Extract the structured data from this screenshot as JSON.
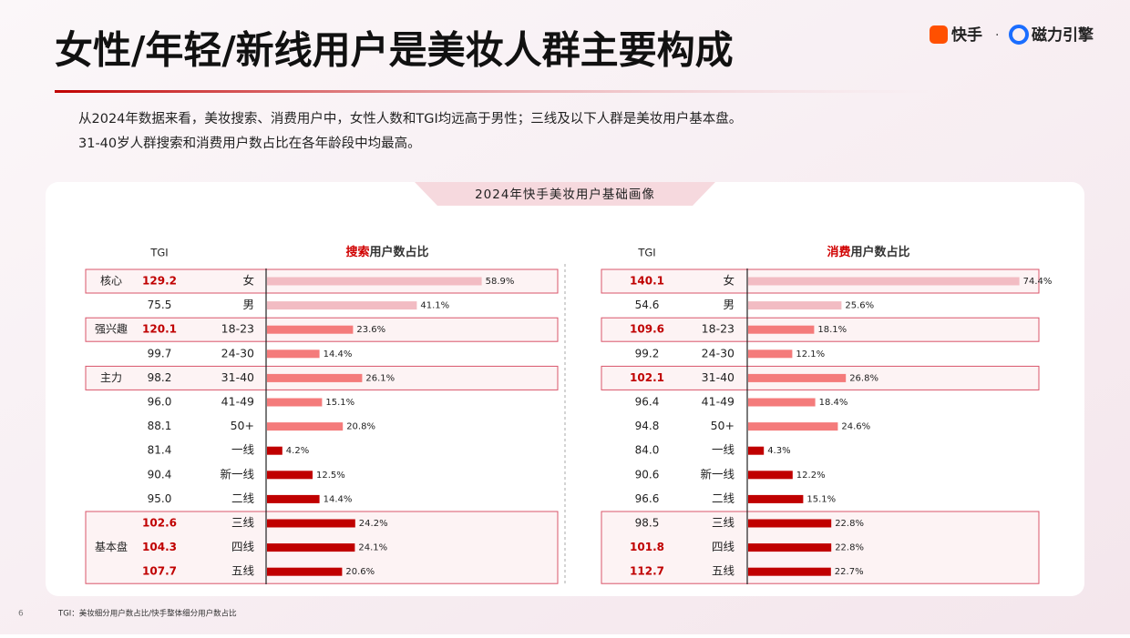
{
  "header": {
    "title": "女性/年轻/新线用户是美妆人群主要构成",
    "logo_a": "快手",
    "logo_sep": "·",
    "logo_b": "磁力引擎"
  },
  "intro": [
    "从2024年数据来看，美妆搜索、消费用户中，女性人数和TGI均远高于男性；三线及以下人群是美妆用户基本盘。",
    "31-40岁人群搜索和消费用户数占比在各年龄段中均最高。"
  ],
  "panel_title": "2024年快手美妆用户基础画像",
  "groups": [
    {
      "label": "核心",
      "rows": [
        0,
        0
      ]
    },
    {
      "label": "强兴趣",
      "rows": [
        2,
        2
      ]
    },
    {
      "label": "主力",
      "rows": [
        4,
        4
      ]
    },
    {
      "label": "基本盘",
      "rows": [
        10,
        12
      ]
    }
  ],
  "chart_data": [
    {
      "type": "bar",
      "tgi_header": "TGI",
      "title_em": "搜索",
      "title_rest": "用户数占比",
      "categories": [
        "女",
        "男",
        "18-23",
        "24-30",
        "31-40",
        "41-49",
        "50+",
        "一线",
        "新一线",
        "二线",
        "三线",
        "四线",
        "五线"
      ],
      "tgi": [
        "129.2",
        "75.5",
        "120.1",
        "99.7",
        "98.2",
        "96.0",
        "88.1",
        "81.4",
        "90.4",
        "95.0",
        "102.6",
        "104.3",
        "107.7"
      ],
      "highlight": [
        0,
        2,
        10,
        11,
        12
      ],
      "values": [
        58.9,
        41.1,
        23.6,
        14.4,
        26.1,
        15.1,
        20.8,
        4.2,
        12.5,
        14.4,
        24.2,
        24.1,
        20.6
      ],
      "value_labels": [
        "58.9%",
        "41.1%",
        "23.6%",
        "14.4%",
        "26.1%",
        "15.1%",
        "20.8%",
        "4.2%",
        "12.5%",
        "14.4%",
        "24.2%",
        "24.1%",
        "20.6%"
      ],
      "colors": [
        "#f2bcc3",
        "#f2bcc3",
        "#f47b7b",
        "#f47b7b",
        "#f47b7b",
        "#f47b7b",
        "#f47b7b",
        "#c00000",
        "#c00000",
        "#c00000",
        "#c00000",
        "#c00000",
        "#c00000"
      ],
      "xlim": [
        0,
        75
      ]
    },
    {
      "type": "bar",
      "tgi_header": "TGI",
      "title_em": "消费",
      "title_rest": "用户数占比",
      "categories": [
        "女",
        "男",
        "18-23",
        "24-30",
        "31-40",
        "41-49",
        "50+",
        "一线",
        "新一线",
        "二线",
        "三线",
        "四线",
        "五线"
      ],
      "tgi": [
        "140.1",
        "54.6",
        "109.6",
        "99.2",
        "102.1",
        "96.4",
        "94.8",
        "84.0",
        "90.6",
        "96.6",
        "98.5",
        "101.8",
        "112.7"
      ],
      "highlight": [
        0,
        2,
        4,
        11,
        12
      ],
      "values": [
        74.4,
        25.6,
        18.1,
        12.1,
        26.8,
        18.4,
        24.6,
        4.3,
        12.2,
        15.1,
        22.8,
        22.8,
        22.7
      ],
      "value_labels": [
        "74.4%",
        "25.6%",
        "18.1%",
        "12.1%",
        "26.8%",
        "18.4%",
        "24.6%",
        "4.3%",
        "12.2%",
        "15.1%",
        "22.8%",
        "22.8%",
        "22.7%"
      ],
      "colors": [
        "#f2bcc3",
        "#f2bcc3",
        "#f47b7b",
        "#f47b7b",
        "#f47b7b",
        "#f47b7b",
        "#f47b7b",
        "#c00000",
        "#c00000",
        "#c00000",
        "#c00000",
        "#c00000",
        "#c00000"
      ],
      "xlim": [
        0,
        75
      ]
    }
  ],
  "footnote": "TGI：美妆细分用户数占比/快手整体细分用户数占比",
  "page_number": "6"
}
